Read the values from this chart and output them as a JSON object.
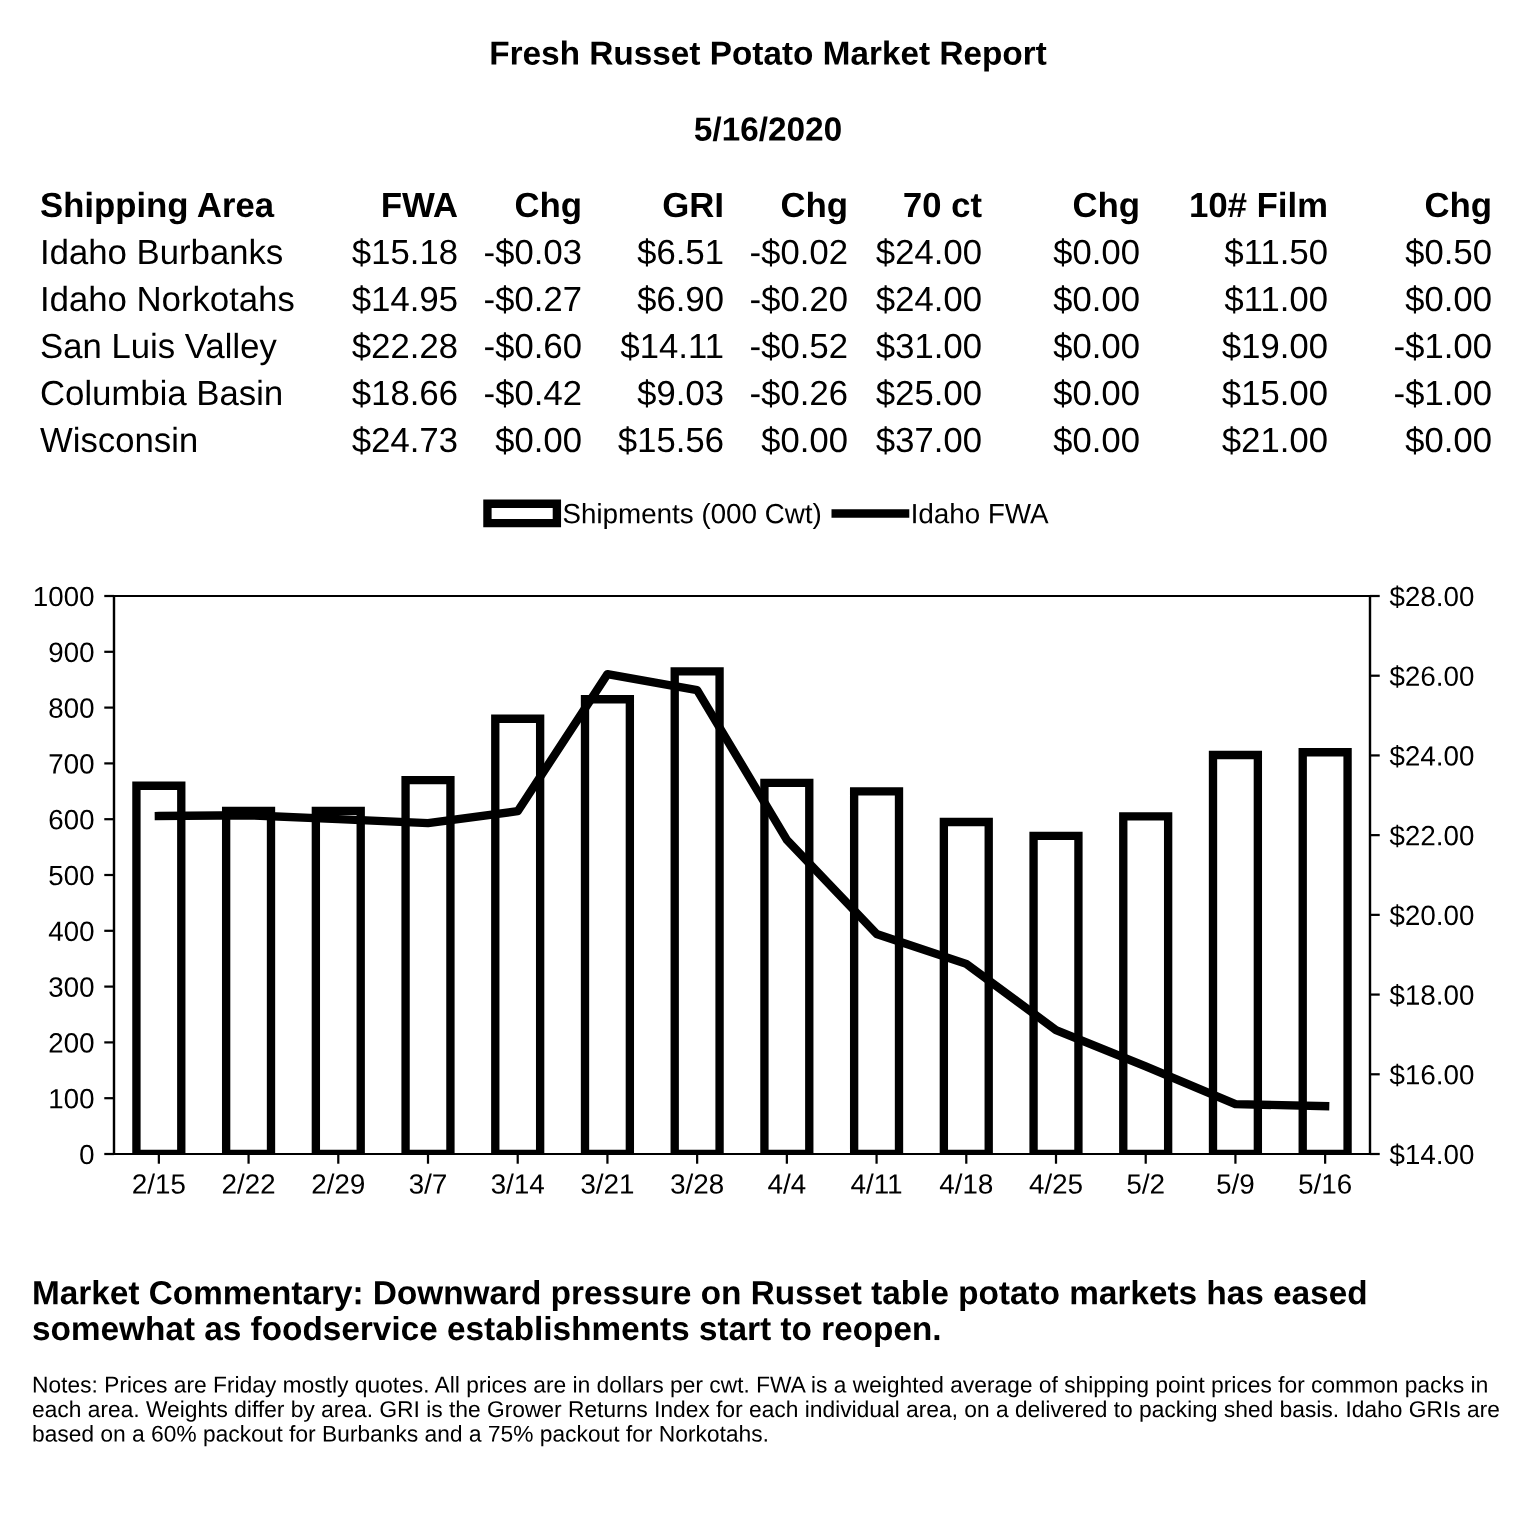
{
  "chart_data": [
    {
      "type": "other",
      "title": "Fresh Russet Potato Market Report",
      "subtitle": "5/16/2020",
      "annotations": [
        "Shipping Area",
        "FWA",
        "Chg",
        "GRI",
        "Chg",
        "70 ct",
        "Chg",
        "10# Film",
        "Chg",
        "Idaho Burbanks",
        "$15.18",
        "-$0.03",
        "$6.51",
        "-$0.02",
        "$24.00",
        "$0.00",
        "$11.50",
        "$0.50",
        "Idaho Norkotahs",
        "$14.95",
        "-$0.27",
        "$6.90",
        "-$0.20",
        "$24.00",
        "$0.00",
        "$11.00",
        "$0.00",
        "San Luis Valley",
        "$22.28",
        "-$0.60",
        "$14.11",
        "-$0.52",
        "$31.00",
        "$0.00",
        "$19.00",
        "-$1.00",
        "Columbia Basin",
        "$18.66",
        "-$0.42",
        "$9.03",
        "-$0.26",
        "$25.00",
        "$0.00",
        "$15.00",
        "-$1.00",
        "Wisconsin",
        "$24.73",
        "$0.00",
        "$15.56",
        "$0.00",
        "$37.00",
        "$0.00",
        "$21.00",
        "$0.00"
      ]
    },
    {
      "type": "bar",
      "categories": [
        "2/15",
        "2/22",
        "2/29",
        "3/7",
        "3/14",
        "3/21",
        "3/28",
        "4/4",
        "4/11",
        "4/18",
        "4/25",
        "5/2",
        "5/9",
        "5/16"
      ],
      "series": [
        {
          "name": "Shipments (000 Cwt)",
          "type": "bar",
          "color": "#ffffff",
          "values": [
            660,
            615,
            615,
            670,
            780,
            815,
            865,
            665,
            650,
            595,
            570,
            605,
            715,
            720
          ]
        },
        {
          "name": "Idaho FWA",
          "type": "line",
          "axis": "y2",
          "color": "#000000",
          "values": [
            22.48,
            22.5,
            22.4,
            22.3,
            22.6,
            26.04,
            25.64,
            21.88,
            19.52,
            18.77,
            17.11,
            16.2,
            15.25,
            15.2
          ]
        }
      ],
      "ylim": [
        0,
        1000
      ],
      "yticks": [
        0,
        100,
        200,
        300,
        400,
        500,
        600,
        700,
        800,
        900,
        1000
      ],
      "y2lim": [
        14,
        28
      ],
      "y2ticks": [
        {
          "value": 14,
          "label": "$14.00"
        },
        {
          "value": 16,
          "label": "$16.00"
        },
        {
          "value": 18,
          "label": "$18.00"
        },
        {
          "value": 20,
          "label": "$20.00"
        },
        {
          "value": 22,
          "label": "$22.00"
        },
        {
          "value": 24,
          "label": "$24.00"
        },
        {
          "value": 26,
          "label": "$26.00"
        },
        {
          "value": 28,
          "label": "$28.00"
        }
      ],
      "legend": "top",
      "grid": false,
      "marker": "none",
      "line_style": "solid",
      "annotations": [
        "Market Commentary: Downward pressure on Russet table potato markets has eased somewhat as foodservice establishments start to reopen.",
        "Notes: Prices are Friday mostly quotes. All prices are in dollars per cwt. FWA is a weighted average of shipping point prices for common packs in each area. Weights differ by area. GRI is the Grower Returns Index for each individual area, on a delivered to packing shed basis. Idaho GRIs are based on a 60% packout for Burbanks and a 75% packout for Norkotahs."
      ]
    }
  ]
}
